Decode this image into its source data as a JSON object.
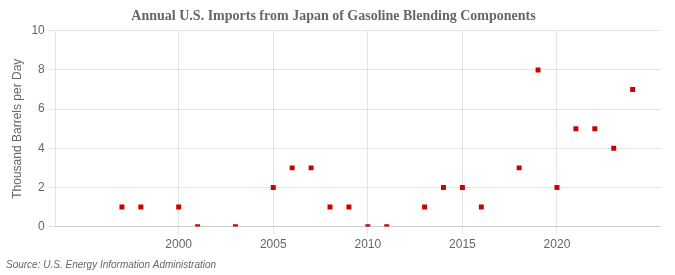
{
  "chart_data": {
    "type": "scatter",
    "title": "Annual U.S. Imports from Japan of Gasoline Blending Components",
    "ylabel": "Thousand Barrels per Day",
    "source": "Source: U.S. Energy Information Administration",
    "x": [
      1997,
      1998,
      2000,
      2001,
      2003,
      2005,
      2006,
      2007,
      2008,
      2009,
      2010,
      2011,
      2013,
      2014,
      2015,
      2016,
      2018,
      2019,
      2020,
      2021,
      2022,
      2023,
      2024
    ],
    "values": [
      1,
      1,
      1,
      0,
      0,
      2,
      3,
      3,
      1,
      1,
      0,
      0,
      1,
      2,
      2,
      1,
      3,
      8,
      2,
      5,
      5,
      4,
      7
    ],
    "color": "#cc0000",
    "marker": "square",
    "xlim": [
      1993.5,
      2025.5
    ],
    "ylim": [
      0,
      10
    ],
    "xticks": [
      2000,
      2005,
      2010,
      2015,
      2020
    ],
    "yticks": [
      0,
      2,
      4,
      6,
      8,
      10
    ],
    "grid": true
  }
}
